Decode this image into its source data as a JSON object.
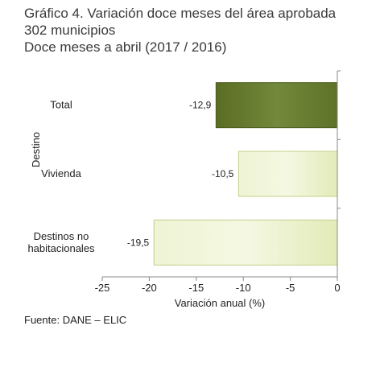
{
  "title": {
    "line1": "Gráfico 4. Variación doce meses del área aprobada",
    "line2": "302 municipios",
    "line3": "Doce meses a abril (2017 / 2016)"
  },
  "source": "Fuente: DANE – ELIC",
  "chart_data": {
    "type": "bar",
    "orientation": "horizontal",
    "categories": [
      "Total",
      "Vivienda",
      "Destinos no habitacionales"
    ],
    "category_lines": [
      [
        "Total"
      ],
      [
        "Vivienda"
      ],
      [
        "Destinos no",
        "habitacionales"
      ]
    ],
    "values": [
      -12.9,
      -10.5,
      -19.5
    ],
    "value_labels": [
      "-12,9",
      "-10,5",
      "-19,5"
    ],
    "xlabel": "Variación anual (%)",
    "ylabel": "Destino",
    "xlim": [
      -25,
      0
    ],
    "xticks": [
      -25,
      -20,
      -15,
      -10,
      -5,
      0
    ],
    "xtick_labels": [
      "-25",
      "-20",
      "-15",
      "-10",
      "-5",
      "0"
    ],
    "grid": false,
    "colors": {
      "Total": "#667a2c",
      "Vivienda": "#e8f0c4",
      "Destinos no habitacionales": "#e8f0c4"
    }
  }
}
